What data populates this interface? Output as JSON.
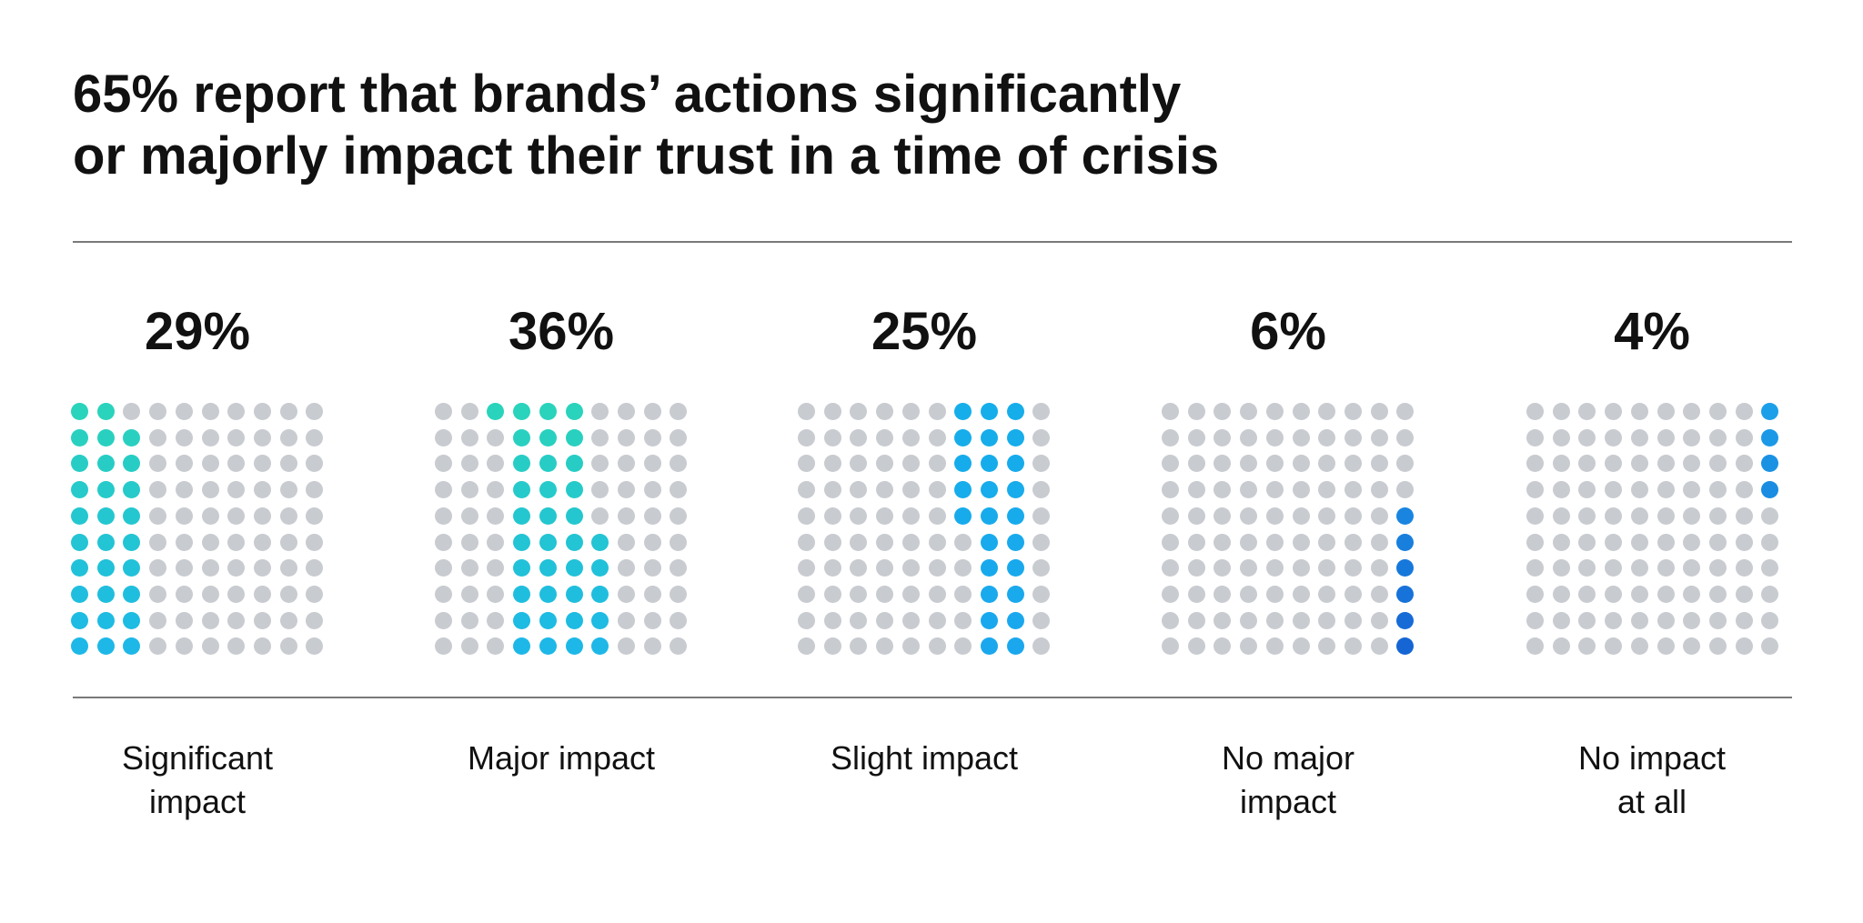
{
  "title": {
    "line1": "65% report that brands’ actions significantly",
    "line2": "or majorly impact their trust in a time of crisis"
  },
  "chart_data": {
    "type": "waffle",
    "title": "65% report that brands’ actions significantly or majorly impact their trust in a time of crisis",
    "grid": {
      "rows": 10,
      "cols": 10
    },
    "inactive_color": "#c8cbd0",
    "categories": [
      {
        "value": 29,
        "value_label": "29%",
        "label_lines": [
          "Significant",
          "impact"
        ],
        "gradient": [
          "#2ad3bb",
          "#1db8e8"
        ],
        "cells": [
          [
            0,
            0
          ],
          [
            0,
            1
          ],
          [
            1,
            0
          ],
          [
            1,
            1
          ],
          [
            1,
            2
          ],
          [
            2,
            0
          ],
          [
            2,
            1
          ],
          [
            2,
            2
          ],
          [
            3,
            0
          ],
          [
            3,
            1
          ],
          [
            3,
            2
          ],
          [
            4,
            0
          ],
          [
            4,
            1
          ],
          [
            4,
            2
          ],
          [
            5,
            0
          ],
          [
            5,
            1
          ],
          [
            5,
            2
          ],
          [
            6,
            0
          ],
          [
            6,
            1
          ],
          [
            6,
            2
          ],
          [
            7,
            0
          ],
          [
            7,
            1
          ],
          [
            7,
            2
          ],
          [
            8,
            0
          ],
          [
            8,
            1
          ],
          [
            8,
            2
          ],
          [
            9,
            0
          ],
          [
            9,
            1
          ],
          [
            9,
            2
          ]
        ]
      },
      {
        "value": 36,
        "value_label": "36%",
        "label_lines": [
          "Major impact"
        ],
        "gradient": [
          "#2ad3bb",
          "#1db8e8"
        ],
        "cells": [
          [
            0,
            2
          ],
          [
            0,
            3
          ],
          [
            0,
            4
          ],
          [
            0,
            5
          ],
          [
            1,
            3
          ],
          [
            1,
            4
          ],
          [
            1,
            5
          ],
          [
            2,
            3
          ],
          [
            2,
            4
          ],
          [
            2,
            5
          ],
          [
            3,
            3
          ],
          [
            3,
            4
          ],
          [
            3,
            5
          ],
          [
            4,
            3
          ],
          [
            4,
            4
          ],
          [
            4,
            5
          ],
          [
            5,
            3
          ],
          [
            5,
            4
          ],
          [
            5,
            5
          ],
          [
            5,
            6
          ],
          [
            6,
            3
          ],
          [
            6,
            4
          ],
          [
            6,
            5
          ],
          [
            6,
            6
          ],
          [
            7,
            3
          ],
          [
            7,
            4
          ],
          [
            7,
            5
          ],
          [
            7,
            6
          ],
          [
            8,
            3
          ],
          [
            8,
            4
          ],
          [
            8,
            5
          ],
          [
            8,
            6
          ],
          [
            9,
            3
          ],
          [
            9,
            4
          ],
          [
            9,
            5
          ],
          [
            9,
            6
          ]
        ]
      },
      {
        "value": 25,
        "value_label": "25%",
        "label_lines": [
          "Slight impact"
        ],
        "gradient": [
          "#15aeea",
          "#1aa7ee"
        ],
        "cells": [
          [
            0,
            6
          ],
          [
            0,
            7
          ],
          [
            0,
            8
          ],
          [
            1,
            6
          ],
          [
            1,
            7
          ],
          [
            1,
            8
          ],
          [
            2,
            6
          ],
          [
            2,
            7
          ],
          [
            2,
            8
          ],
          [
            3,
            6
          ],
          [
            3,
            7
          ],
          [
            3,
            8
          ],
          [
            4,
            6
          ],
          [
            4,
            7
          ],
          [
            4,
            8
          ],
          [
            5,
            7
          ],
          [
            5,
            8
          ],
          [
            6,
            7
          ],
          [
            6,
            8
          ],
          [
            7,
            7
          ],
          [
            7,
            8
          ],
          [
            8,
            7
          ],
          [
            8,
            8
          ],
          [
            9,
            7
          ],
          [
            9,
            8
          ]
        ]
      },
      {
        "value": 6,
        "value_label": "6%",
        "label_lines": [
          "No major",
          "impact"
        ],
        "gradient": [
          "#1c9fe9",
          "#1565d4"
        ],
        "cells": [
          [
            4,
            9
          ],
          [
            5,
            9
          ],
          [
            6,
            9
          ],
          [
            7,
            9
          ],
          [
            8,
            9
          ],
          [
            9,
            9
          ]
        ]
      },
      {
        "value": 4,
        "value_label": "4%",
        "label_lines": [
          "No impact",
          "at all"
        ],
        "gradient": [
          "#1c9fe9",
          "#1565d4"
        ],
        "cells": [
          [
            0,
            9
          ],
          [
            1,
            9
          ],
          [
            2,
            9
          ],
          [
            3,
            9
          ]
        ]
      }
    ]
  }
}
